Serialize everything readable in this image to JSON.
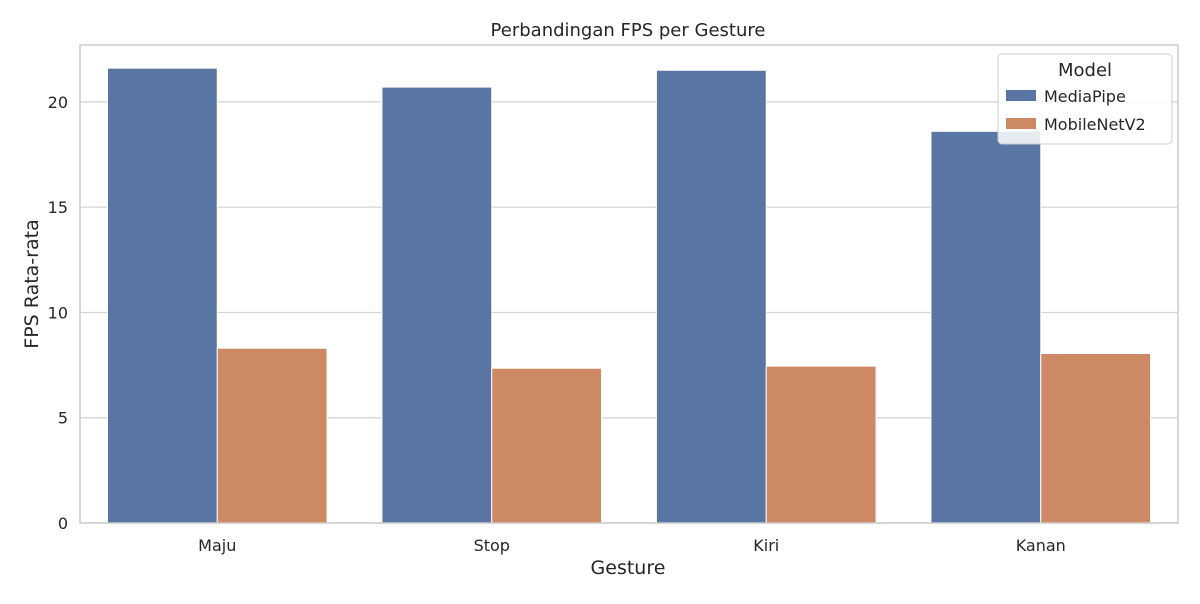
{
  "chart_data": {
    "type": "bar",
    "title": "Perbandingan FPS per Gesture",
    "xlabel": "Gesture",
    "ylabel": "FPS Rata-rata",
    "categories": [
      "Maju",
      "Stop",
      "Kiri",
      "Kanan"
    ],
    "series": [
      {
        "name": "MediaPipe",
        "values": [
          21.6,
          20.7,
          21.5,
          18.6
        ],
        "color": "#5975a4"
      },
      {
        "name": "MobileNetV2",
        "values": [
          8.3,
          7.35,
          7.45,
          8.05
        ],
        "color": "#cc8963"
      }
    ],
    "ylim": [
      0,
      22.7
    ],
    "yticks": [
      0,
      5,
      10,
      15,
      20
    ],
    "grid": true,
    "legend": {
      "title": "Model",
      "placement": "top-right"
    }
  }
}
